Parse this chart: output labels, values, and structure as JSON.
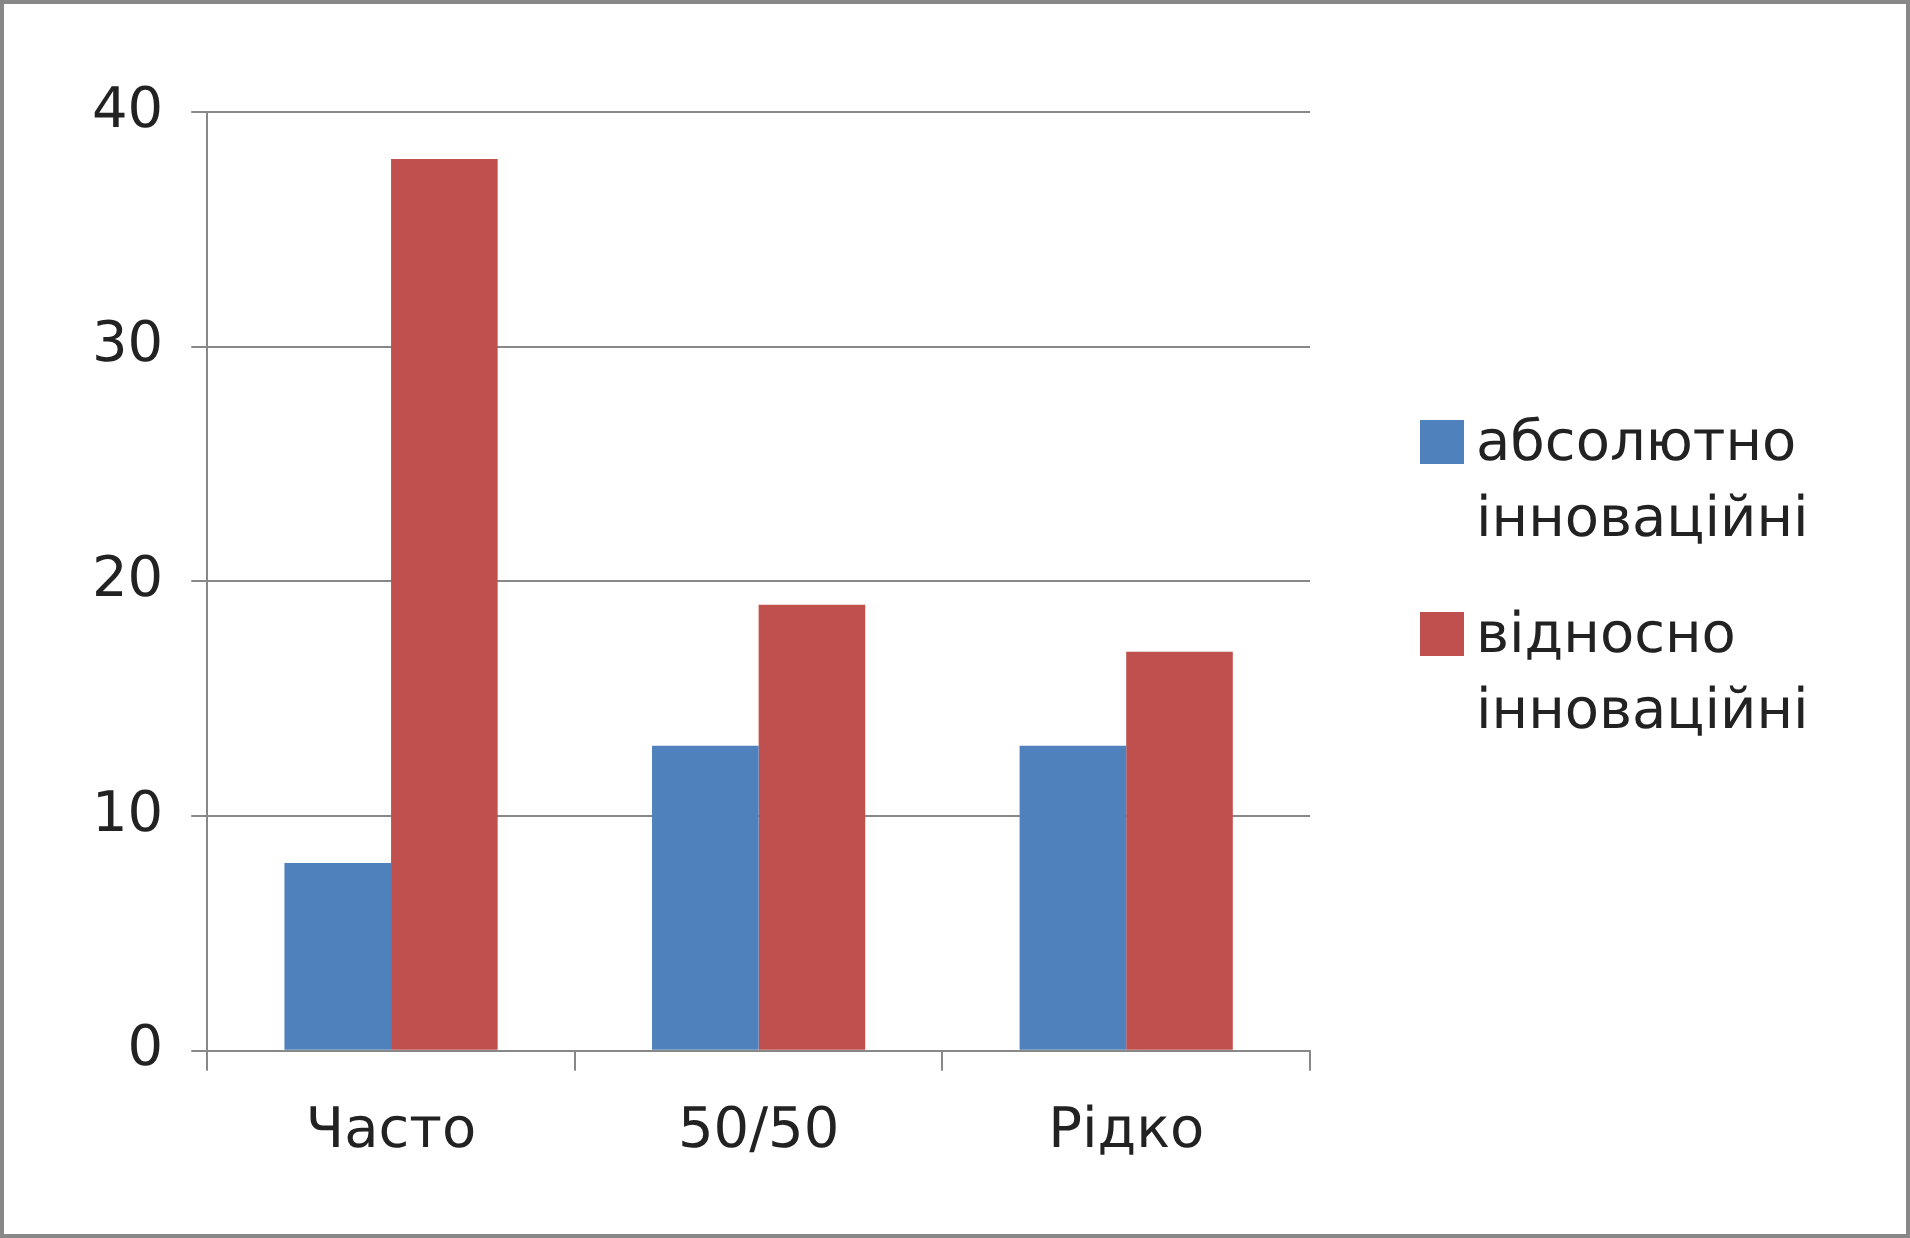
{
  "chart_data": {
    "type": "bar",
    "categories": [
      "Часто",
      "50/50",
      "Рідко"
    ],
    "series": [
      {
        "name": "абсолютно інноваційні",
        "color": "#4f81bd",
        "values": [
          8,
          13,
          13
        ]
      },
      {
        "name": "відносно інноваційні",
        "color": "#c0504d",
        "values": [
          38,
          19,
          17
        ]
      }
    ],
    "ylim": [
      0,
      40
    ],
    "yticks": [
      0,
      10,
      20,
      30,
      40
    ],
    "grid": "y",
    "legend": "right"
  }
}
